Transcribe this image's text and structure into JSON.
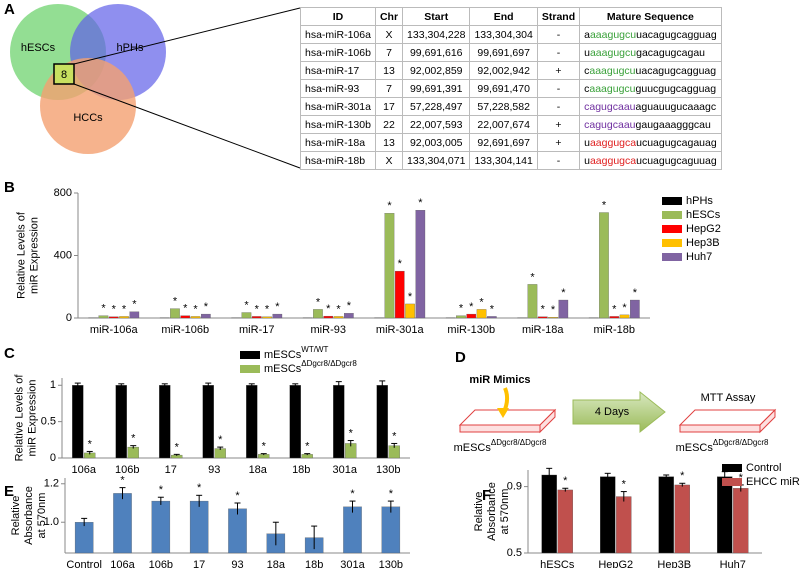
{
  "panel_labels": [
    "A",
    "B",
    "C",
    "D",
    "E",
    "F"
  ],
  "venn": {
    "sets": [
      "hESCs",
      "hPHs",
      "HCCs"
    ],
    "intersection": 8
  },
  "table": {
    "header": [
      "ID",
      "Chr",
      "Start",
      "End",
      "Strand",
      "Mature Sequence"
    ],
    "rows": [
      {
        "cells": [
          "hsa-miR-106a",
          "X",
          "133,304,228",
          "133,304,304",
          "-"
        ],
        "sequence": [
          {
            "text": "a"
          },
          {
            "text": "aaagugcu",
            "color": "#3aa13a"
          },
          {
            "text": "uacagugcagguag"
          }
        ]
      },
      {
        "cells": [
          "hsa-miR-106b",
          "7",
          "99,691,616",
          "99,691,697",
          "-"
        ],
        "sequence": [
          {
            "text": "u"
          },
          {
            "text": "aaagugcu",
            "color": "#3aa13a"
          },
          {
            "text": "gacagugcagau"
          }
        ]
      },
      {
        "cells": [
          "hsa-miR-17",
          "13",
          "92,002,859",
          "92,002,942",
          "+"
        ],
        "sequence": [
          {
            "text": "c"
          },
          {
            "text": "aaagugcu",
            "color": "#3aa13a"
          },
          {
            "text": "uacagugcagguag"
          }
        ]
      },
      {
        "cells": [
          "hsa-miR-93",
          "7",
          "99,691,391",
          "99,691,470",
          "-"
        ],
        "sequence": [
          {
            "text": "c"
          },
          {
            "text": "aaagugcu",
            "color": "#3aa13a"
          },
          {
            "text": "guucgugcagguag"
          }
        ]
      },
      {
        "cells": [
          "hsa-miR-301a",
          "17",
          "57,228,497",
          "57,228,582",
          "-"
        ],
        "sequence": [
          {
            "text": "cagugcaau",
            "color": "#7030a0"
          },
          {
            "text": "aguauugucaaagc"
          }
        ]
      },
      {
        "cells": [
          "hsa-miR-130b",
          "22",
          "22,007,593",
          "22,007,674",
          "+"
        ],
        "sequence": [
          {
            "text": "cagugcaau",
            "color": "#7030a0"
          },
          {
            "text": "gaugaaagggcau"
          }
        ]
      },
      {
        "cells": [
          "hsa-miR-18a",
          "13",
          "92,003,005",
          "92,691,697",
          "+"
        ],
        "sequence": [
          {
            "text": "u"
          },
          {
            "text": "aaggugca",
            "color": "#e02020"
          },
          {
            "text": "ucuagugcagauag"
          }
        ]
      },
      {
        "cells": [
          "hsa-miR-18b",
          "X",
          "133,304,071",
          "133,304,141",
          "-"
        ],
        "sequence": [
          {
            "text": "u"
          },
          {
            "text": "aaggugca",
            "color": "#e02020"
          },
          {
            "text": "ucuagugcaguuag"
          }
        ]
      }
    ]
  },
  "diagram": {
    "treatment": "miR Mimics",
    "duration": "4 Days",
    "assay": "MTT Assay",
    "cells": [
      {
        "text": "mESCs",
        "sup": "ΔDgcr8/ΔDgcr8"
      },
      {
        "text": "mESCs",
        "sup": "ΔDgcr8/ΔDgcr8"
      }
    ]
  },
  "chart_data": [
    {
      "type": "bar",
      "ylabel": [
        "Relative Levels of",
        "miR Expression"
      ],
      "categories": [
        "miR-106a",
        "miR-106b",
        "miR-17",
        "miR-93",
        "miR-301a",
        "miR-130b",
        "miR-18a",
        "miR-18b"
      ],
      "series": [
        {
          "name": "hPHs",
          "color": "#000000",
          "values": [
            1,
            1,
            1,
            1,
            1,
            1,
            1,
            1
          ]
        },
        {
          "name": "hESCs",
          "color": "#9bbb59",
          "values": [
            15,
            60,
            35,
            55,
            670,
            15,
            215,
            675
          ],
          "significance": [
            "*",
            "*",
            "*",
            "*",
            "*",
            "*",
            "*",
            "*"
          ]
        },
        {
          "name": "HepG2",
          "color": "#ff0000",
          "values": [
            8,
            15,
            10,
            12,
            300,
            25,
            8,
            10
          ],
          "significance": [
            "*",
            "*",
            "*",
            "*",
            "*",
            "*",
            "*",
            "*"
          ]
        },
        {
          "name": "Hep3B",
          "color": "#ffc000",
          "values": [
            10,
            10,
            8,
            10,
            90,
            55,
            5,
            20
          ],
          "significance": [
            "*",
            "*",
            "*",
            "*",
            "*",
            "*",
            "*",
            "*"
          ]
        },
        {
          "name": "Huh7",
          "color": "#8064a2",
          "values": [
            40,
            25,
            25,
            30,
            690,
            10,
            115,
            115
          ],
          "significance": [
            "*",
            "*",
            "*",
            "*",
            "*",
            "*",
            "*",
            "*"
          ]
        }
      ],
      "ylim": [
        0,
        800
      ],
      "yticks": [
        0,
        400,
        800
      ],
      "legend": "right"
    },
    {
      "type": "bar",
      "ylabel": [
        "Relative Levels of",
        "miR Expression"
      ],
      "categories": [
        "106a",
        "106b",
        "17",
        "93",
        "18a",
        "18b",
        "301a",
        "130b"
      ],
      "series": [
        {
          "name": "mESCs",
          "name_sup": "WT/WT",
          "color": "#000000",
          "values": [
            1,
            1,
            1,
            1,
            1,
            1,
            1,
            1
          ],
          "errors": [
            0.03,
            0.02,
            0.02,
            0.03,
            0.02,
            0.02,
            0.05,
            0.06
          ]
        },
        {
          "name": "mESCs",
          "name_sup": "ΔDgcr8/ΔDgcr8",
          "color": "#9bbb59",
          "values": [
            0.07,
            0.15,
            0.04,
            0.13,
            0.05,
            0.05,
            0.2,
            0.17
          ],
          "errors": [
            0.02,
            0.02,
            0.01,
            0.02,
            0.01,
            0.01,
            0.04,
            0.03
          ],
          "significance": [
            "*",
            "*",
            "*",
            "*",
            "*",
            "*",
            "*",
            "*"
          ]
        }
      ],
      "ylim": [
        0,
        1.1
      ],
      "yticks": [
        0,
        0.5,
        1
      ],
      "legend": "top"
    },
    {
      "type": "bar",
      "ylabel": [
        "Relative",
        "Absorbance",
        "at 570nm"
      ],
      "categories": [
        "Control",
        "106a",
        "106b",
        "17",
        "93",
        "18a",
        "18b",
        "301a",
        "130b"
      ],
      "values": [
        1.0,
        1.15,
        1.11,
        1.11,
        1.07,
        0.94,
        0.92,
        1.08,
        1.08
      ],
      "errors": [
        0.02,
        0.03,
        0.02,
        0.03,
        0.03,
        0.06,
        0.06,
        0.03,
        0.03
      ],
      "significance": [
        null,
        "*",
        "*",
        "*",
        "*",
        null,
        null,
        "*",
        "*"
      ],
      "color": "#4f81bd",
      "ylim": [
        0.84,
        1.23
      ],
      "yticks": [
        {
          "value": 1,
          "label": "1.0"
        },
        {
          "value": 1.2,
          "label": "1.2"
        }
      ]
    },
    {
      "type": "bar",
      "ylabel": [
        "Relative",
        "Absorbance",
        "at 570nm"
      ],
      "categories": [
        "hESCs",
        "HepG2",
        "Hep3B",
        "Huh7"
      ],
      "series": [
        {
          "name": "Control",
          "color": "#000000",
          "values": [
            0.97,
            0.96,
            0.96,
            0.96
          ],
          "errors": [
            0.04,
            0.02,
            0.01,
            0.03
          ]
        },
        {
          "name": "EHCC miRs",
          "color": "#c0504d",
          "values": [
            0.88,
            0.84,
            0.91,
            0.89
          ],
          "errors": [
            0.01,
            0.03,
            0.01,
            0.02
          ],
          "significance": [
            "*",
            "*",
            "*",
            "*"
          ]
        }
      ],
      "ylim": [
        0.5,
        1.0
      ],
      "yticks": [
        0.5,
        0.9
      ],
      "legend": "top-right"
    }
  ]
}
